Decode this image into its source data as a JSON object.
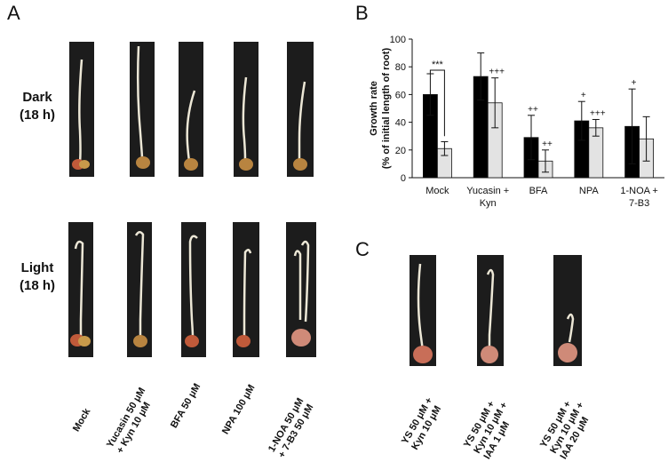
{
  "panels": {
    "a": {
      "letter": "A"
    },
    "b": {
      "letter": "B"
    },
    "c": {
      "letter": "C"
    }
  },
  "rows": [
    {
      "line1": "Dark",
      "line2": "(18 h)"
    },
    {
      "line1": "Light",
      "line2": "(18 h)"
    }
  ],
  "treatments_a": [
    {
      "line1": "Mock",
      "line2": ""
    },
    {
      "line1": "Yucasin 50 μM",
      "line2": "+ Kyn 10 μM"
    },
    {
      "line1": "BFA 50 μM",
      "line2": ""
    },
    {
      "line1": "NPA 100 μM",
      "line2": ""
    },
    {
      "line1": "1-NOA 50 μM",
      "line2": "+ 7-B3 50 μM"
    }
  ],
  "treatments_c": [
    {
      "line1": "YS 50 μM +",
      "line2": "Kyn 10 μM",
      "line3": ""
    },
    {
      "line1": "YS 50 μM +",
      "line2": "Kyn 10 μM +",
      "line3": "IAA 1 μM"
    },
    {
      "line1": "YS 50 μM +",
      "line2": "Kyn 10 μM +",
      "line3": "IAA 20 μM"
    }
  ],
  "chart_data": {
    "type": "bar",
    "ylabel_line1": "Growth rate",
    "ylabel_line2": "(% of initial length of root)",
    "ylim": [
      0,
      100
    ],
    "yticks": [
      0,
      20,
      40,
      60,
      80,
      100
    ],
    "categories": [
      {
        "line1": "Mock",
        "line2": ""
      },
      {
        "line1": "Yucasin +",
        "line2": "Kyn"
      },
      {
        "line1": "BFA",
        "line2": ""
      },
      {
        "line1": "NPA",
        "line2": ""
      },
      {
        "line1": "1-NOA +",
        "line2": "7-B3"
      }
    ],
    "series": [
      {
        "color": "#000000",
        "values": [
          60,
          73,
          29,
          41,
          37
        ],
        "errors": [
          15,
          17,
          16,
          14,
          27
        ]
      },
      {
        "color": "#e3e3e3",
        "values": [
          21,
          54,
          12,
          36,
          28
        ],
        "errors": [
          5,
          18,
          8,
          6,
          16
        ]
      }
    ],
    "annotations": [
      {
        "text": "***",
        "category": 0,
        "bracket": true
      },
      {
        "text": "+++",
        "category": 1,
        "series": 1
      },
      {
        "text": "++",
        "category": 2,
        "series": 0
      },
      {
        "text": "++",
        "category": 2,
        "series": 1
      },
      {
        "text": "+",
        "category": 3,
        "series": 0
      },
      {
        "text": "+++",
        "category": 3,
        "series": 1
      },
      {
        "text": "+",
        "category": 4,
        "series": 0
      }
    ]
  }
}
